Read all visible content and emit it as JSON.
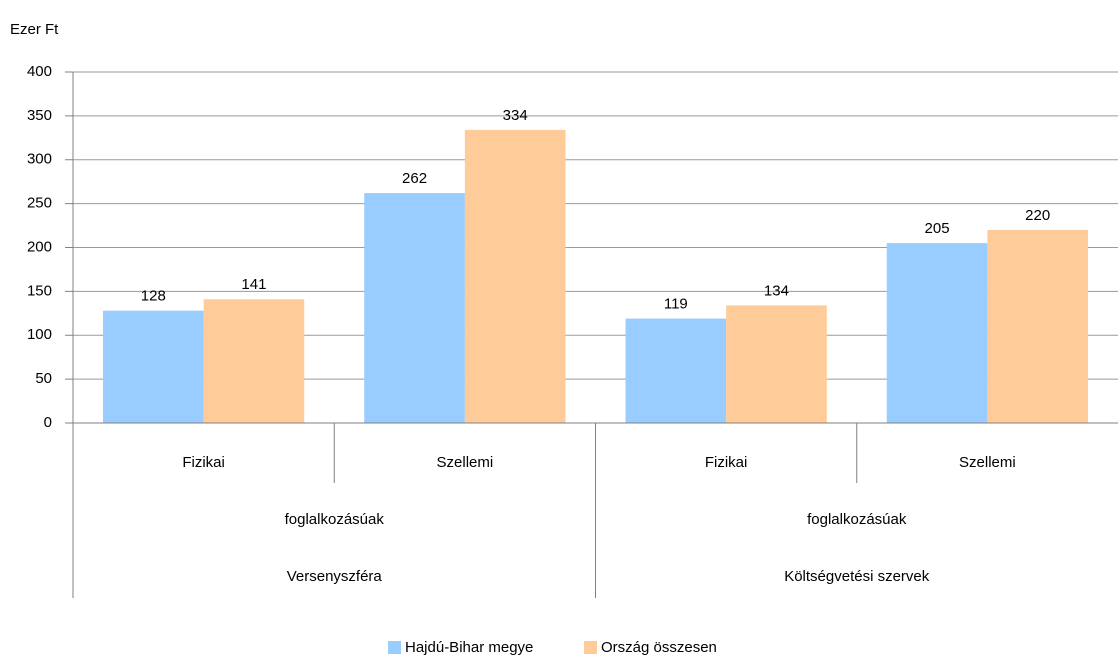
{
  "chart_data": {
    "type": "bar",
    "y_label": "Ezer Ft",
    "groups": [
      {
        "name": "Versenyszféra",
        "subgroup": "foglalkozásúak",
        "categories": [
          "Fizikai",
          "Szellemi"
        ]
      },
      {
        "name": "Költségvetési szervek",
        "subgroup": "foglalkozásúak",
        "categories": [
          "Fizikai",
          "Szellemi"
        ]
      }
    ],
    "series": [
      {
        "name": "Hajdú-Bihar megye",
        "color": "#99ccff",
        "values": [
          128,
          262,
          119,
          205
        ]
      },
      {
        "name": "Ország összesen",
        "color": "#ffcc99",
        "values": [
          141,
          334,
          134,
          220
        ]
      }
    ],
    "ylim": [
      0,
      400
    ],
    "yticks": [
      0,
      50,
      100,
      150,
      200,
      250,
      300,
      350,
      400
    ],
    "grid": true,
    "legend": "bottom"
  }
}
